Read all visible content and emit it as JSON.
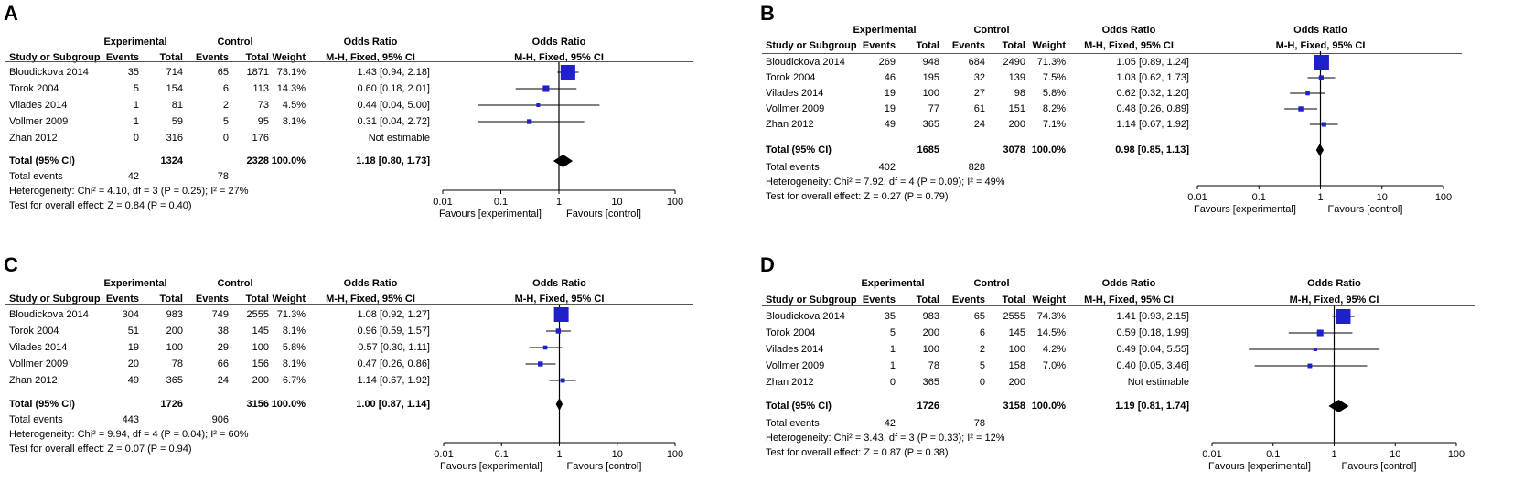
{
  "headers": {
    "experimental": "Experimental",
    "control": "Control",
    "odds_ratio": "Odds Ratio",
    "study": "Study or Subgroup",
    "events": "Events",
    "total": "Total",
    "weight": "Weight",
    "method": "M-H, Fixed, 95% CI",
    "total_row_label": "Total (95% CI)",
    "total_events_label": "Total events",
    "favours_left": "Favours [experimental]",
    "favours_right": "Favours [control]"
  },
  "colors": {
    "marker": "#1f1fcc",
    "ci_line": "#000000"
  },
  "chart_data": [
    {
      "type": "forest",
      "panel": "A",
      "x_scale": "log",
      "xlim": [
        0.01,
        100
      ],
      "ticks": [
        "0.01",
        "0.1",
        "1",
        "10",
        "100"
      ],
      "studies": [
        {
          "name": "Bloudickova 2014",
          "exp_events": "35",
          "exp_total": "714",
          "ctl_events": "65",
          "ctl_total": "1871",
          "weight": "73.1%",
          "ci_text": "1.43 [0.94, 2.18]",
          "or": 1.43,
          "lo": 0.94,
          "hi": 2.18,
          "w": 73.1
        },
        {
          "name": "Torok 2004",
          "exp_events": "5",
          "exp_total": "154",
          "ctl_events": "6",
          "ctl_total": "113",
          "weight": "14.3%",
          "ci_text": "0.60 [0.18, 2.01]",
          "or": 0.6,
          "lo": 0.18,
          "hi": 2.01,
          "w": 14.3
        },
        {
          "name": "Vilades 2014",
          "exp_events": "1",
          "exp_total": "81",
          "ctl_events": "2",
          "ctl_total": "73",
          "weight": "4.5%",
          "ci_text": "0.44 [0.04, 5.00]",
          "or": 0.44,
          "lo": 0.04,
          "hi": 5.0,
          "w": 4.5
        },
        {
          "name": "Vollmer 2009",
          "exp_events": "1",
          "exp_total": "59",
          "ctl_events": "5",
          "ctl_total": "95",
          "weight": "8.1%",
          "ci_text": "0.31 [0.04, 2.72]",
          "or": 0.31,
          "lo": 0.04,
          "hi": 2.72,
          "w": 8.1
        },
        {
          "name": "Zhan 2012",
          "exp_events": "0",
          "exp_total": "316",
          "ctl_events": "0",
          "ctl_total": "176",
          "weight": "",
          "ci_text": "Not estimable",
          "or": null,
          "lo": null,
          "hi": null,
          "w": 0
        }
      ],
      "total": {
        "exp_total": "1324",
        "ctl_total": "2328",
        "weight": "100.0%",
        "ci_text": "1.18 [0.80, 1.73]",
        "or": 1.18,
        "lo": 0.8,
        "hi": 1.73
      },
      "total_events": {
        "exp": "42",
        "ctl": "78"
      },
      "heterogeneity": "Heterogeneity: Chi² = 4.10, df = 3 (P = 0.25); I² = 27%",
      "overall_effect": "Test for overall effect: Z = 0.84 (P = 0.40)"
    },
    {
      "type": "forest",
      "panel": "B",
      "x_scale": "log",
      "xlim": [
        0.01,
        100
      ],
      "ticks": [
        "0.01",
        "0.1",
        "1",
        "10",
        "100"
      ],
      "studies": [
        {
          "name": "Bloudickova 2014",
          "exp_events": "269",
          "exp_total": "948",
          "ctl_events": "684",
          "ctl_total": "2490",
          "weight": "71.3%",
          "ci_text": "1.05 [0.89, 1.24]",
          "or": 1.05,
          "lo": 0.89,
          "hi": 1.24,
          "w": 71.3
        },
        {
          "name": "Torok 2004",
          "exp_events": "46",
          "exp_total": "195",
          "ctl_events": "32",
          "ctl_total": "139",
          "weight": "7.5%",
          "ci_text": "1.03 [0.62, 1.73]",
          "or": 1.03,
          "lo": 0.62,
          "hi": 1.73,
          "w": 7.5
        },
        {
          "name": "Vilades 2014",
          "exp_events": "19",
          "exp_total": "100",
          "ctl_events": "27",
          "ctl_total": "98",
          "weight": "5.8%",
          "ci_text": "0.62 [0.32, 1.20]",
          "or": 0.62,
          "lo": 0.32,
          "hi": 1.2,
          "w": 5.8
        },
        {
          "name": "Vollmer 2009",
          "exp_events": "19",
          "exp_total": "77",
          "ctl_events": "61",
          "ctl_total": "151",
          "weight": "8.2%",
          "ci_text": "0.48 [0.26, 0.89]",
          "or": 0.48,
          "lo": 0.26,
          "hi": 0.89,
          "w": 8.2
        },
        {
          "name": "Zhan 2012",
          "exp_events": "49",
          "exp_total": "365",
          "ctl_events": "24",
          "ctl_total": "200",
          "weight": "7.1%",
          "ci_text": "1.14 [0.67, 1.92]",
          "or": 1.14,
          "lo": 0.67,
          "hi": 1.92,
          "w": 7.1
        }
      ],
      "total": {
        "exp_total": "1685",
        "ctl_total": "3078",
        "weight": "100.0%",
        "ci_text": "0.98 [0.85, 1.13]",
        "or": 0.98,
        "lo": 0.85,
        "hi": 1.13
      },
      "total_events": {
        "exp": "402",
        "ctl": "828"
      },
      "heterogeneity": "Heterogeneity: Chi² = 7.92, df = 4 (P = 0.09); I² = 49%",
      "overall_effect": "Test for overall effect: Z = 0.27 (P = 0.79)"
    },
    {
      "type": "forest",
      "panel": "C",
      "x_scale": "log",
      "xlim": [
        0.01,
        100
      ],
      "ticks": [
        "0.01",
        "0.1",
        "1",
        "10",
        "100"
      ],
      "studies": [
        {
          "name": "Bloudickova 2014",
          "exp_events": "304",
          "exp_total": "983",
          "ctl_events": "749",
          "ctl_total": "2555",
          "weight": "71.3%",
          "ci_text": "1.08 [0.92, 1.27]",
          "or": 1.08,
          "lo": 0.92,
          "hi": 1.27,
          "w": 71.3
        },
        {
          "name": "Torok 2004",
          "exp_events": "51",
          "exp_total": "200",
          "ctl_events": "38",
          "ctl_total": "145",
          "weight": "8.1%",
          "ci_text": "0.96 [0.59, 1.57]",
          "or": 0.96,
          "lo": 0.59,
          "hi": 1.57,
          "w": 8.1
        },
        {
          "name": "Vilades 2014",
          "exp_events": "19",
          "exp_total": "100",
          "ctl_events": "29",
          "ctl_total": "100",
          "weight": "5.8%",
          "ci_text": "0.57 [0.30, 1.11]",
          "or": 0.57,
          "lo": 0.3,
          "hi": 1.11,
          "w": 5.8
        },
        {
          "name": "Vollmer 2009",
          "exp_events": "20",
          "exp_total": "78",
          "ctl_events": "66",
          "ctl_total": "156",
          "weight": "8.1%",
          "ci_text": "0.47 [0.26, 0.86]",
          "or": 0.47,
          "lo": 0.26,
          "hi": 0.86,
          "w": 8.1
        },
        {
          "name": "Zhan 2012",
          "exp_events": "49",
          "exp_total": "365",
          "ctl_events": "24",
          "ctl_total": "200",
          "weight": "6.7%",
          "ci_text": "1.14 [0.67, 1.92]",
          "or": 1.14,
          "lo": 0.67,
          "hi": 1.92,
          "w": 6.7
        }
      ],
      "total": {
        "exp_total": "1726",
        "ctl_total": "3156",
        "weight": "100.0%",
        "ci_text": "1.00 [0.87, 1.14]",
        "or": 1.0,
        "lo": 0.87,
        "hi": 1.14
      },
      "total_events": {
        "exp": "443",
        "ctl": "906"
      },
      "heterogeneity": "Heterogeneity: Chi² = 9.94, df = 4 (P = 0.04); I² = 60%",
      "overall_effect": "Test for overall effect: Z = 0.07 (P = 0.94)"
    },
    {
      "type": "forest",
      "panel": "D",
      "x_scale": "log",
      "xlim": [
        0.01,
        100
      ],
      "ticks": [
        "0.01",
        "0.1",
        "1",
        "10",
        "100"
      ],
      "studies": [
        {
          "name": "Bloudickova 2014",
          "exp_events": "35",
          "exp_total": "983",
          "ctl_events": "65",
          "ctl_total": "2555",
          "weight": "74.3%",
          "ci_text": "1.41 [0.93, 2.15]",
          "or": 1.41,
          "lo": 0.93,
          "hi": 2.15,
          "w": 74.3
        },
        {
          "name": "Torok 2004",
          "exp_events": "5",
          "exp_total": "200",
          "ctl_events": "6",
          "ctl_total": "145",
          "weight": "14.5%",
          "ci_text": "0.59 [0.18, 1.99]",
          "or": 0.59,
          "lo": 0.18,
          "hi": 1.99,
          "w": 14.5
        },
        {
          "name": "Vilades 2014",
          "exp_events": "1",
          "exp_total": "100",
          "ctl_events": "2",
          "ctl_total": "100",
          "weight": "4.2%",
          "ci_text": "0.49 [0.04, 5.55]",
          "or": 0.49,
          "lo": 0.04,
          "hi": 5.55,
          "w": 4.2
        },
        {
          "name": "Vollmer 2009",
          "exp_events": "1",
          "exp_total": "78",
          "ctl_events": "5",
          "ctl_total": "158",
          "weight": "7.0%",
          "ci_text": "0.40 [0.05, 3.46]",
          "or": 0.4,
          "lo": 0.05,
          "hi": 3.46,
          "w": 7.0
        },
        {
          "name": "Zhan 2012",
          "exp_events": "0",
          "exp_total": "365",
          "ctl_events": "0",
          "ctl_total": "200",
          "weight": "",
          "ci_text": "Not estimable",
          "or": null,
          "lo": null,
          "hi": null,
          "w": 0
        }
      ],
      "total": {
        "exp_total": "1726",
        "ctl_total": "3158",
        "weight": "100.0%",
        "ci_text": "1.19 [0.81, 1.74]",
        "or": 1.19,
        "lo": 0.81,
        "hi": 1.74
      },
      "total_events": {
        "exp": "42",
        "ctl": "78"
      },
      "heterogeneity": "Heterogeneity: Chi² = 3.43, df = 3 (P = 0.33); I² = 12%",
      "overall_effect": "Test for overall effect: Z = 0.87 (P = 0.38)"
    }
  ]
}
